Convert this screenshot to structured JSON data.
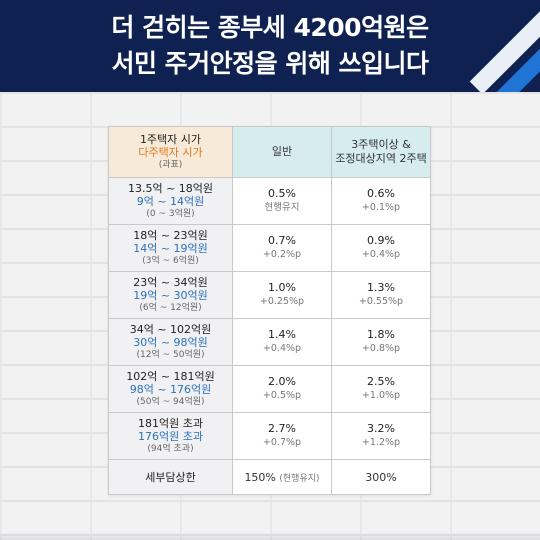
{
  "headline": {
    "line1": "더 걷히는 종부세 4200억원은",
    "line2": "서민 주거안정을 위해 쓰입니다"
  },
  "table": {
    "headers": {
      "col1": {
        "line1": "1주택자 시가",
        "line2": "다주택자 시가",
        "line3": "(과표)"
      },
      "col2": "일반",
      "col3": {
        "line1": "3주택이상 &",
        "line2": "조정대상지역 2주택"
      }
    },
    "rows": [
      {
        "a": "13.5억 ~ 18억원",
        "b": "9억 ~ 14억원",
        "c": "(0 ~ 3억원)",
        "g_rate": "0.5%",
        "g_delta": "현행유지",
        "m_rate": "0.6%",
        "m_delta": "+0.1%p"
      },
      {
        "a": "18억 ~ 23억원",
        "b": "14억 ~ 19억원",
        "c": "(3억 ~ 6억원)",
        "g_rate": "0.7%",
        "g_delta": "+0.2%p",
        "m_rate": "0.9%",
        "m_delta": "+0.4%p"
      },
      {
        "a": "23억 ~ 34억원",
        "b": "19억 ~ 30억원",
        "c": "(6억 ~ 12억원)",
        "g_rate": "1.0%",
        "g_delta": "+0.25%p",
        "m_rate": "1.3%",
        "m_delta": "+0.55%p"
      },
      {
        "a": "34억 ~ 102억원",
        "b": "30억 ~ 98억원",
        "c": "(12억 ~ 50억원)",
        "g_rate": "1.4%",
        "g_delta": "+0.4%p",
        "m_rate": "1.8%",
        "m_delta": "+0.8%p"
      },
      {
        "a": "102억 ~ 181억원",
        "b": "98억 ~ 176억원",
        "c": "(50억 ~ 94억원)",
        "g_rate": "2.0%",
        "g_delta": "+0.5%p",
        "m_rate": "2.5%",
        "m_delta": "+1.0%p"
      },
      {
        "a": "181억원 초과",
        "b": "176억원 초과",
        "c": "(94억 초과)",
        "g_rate": "2.7%",
        "g_delta": "+0.7%p",
        "m_rate": "3.2%",
        "m_delta": "+1.2%p"
      }
    ],
    "last_row": {
      "label": "세부담상한",
      "general": "150%",
      "general_note": "(현행유지)",
      "multi": "300%"
    }
  },
  "colors": {
    "header_bg": "#0e2150",
    "accent_blue": "#1f74d6",
    "orange_text": "#e07a1e",
    "blue_text": "#2a70b9",
    "header_cell_peach": "#f8ead8",
    "header_cell_teal": "#d6ecef"
  }
}
